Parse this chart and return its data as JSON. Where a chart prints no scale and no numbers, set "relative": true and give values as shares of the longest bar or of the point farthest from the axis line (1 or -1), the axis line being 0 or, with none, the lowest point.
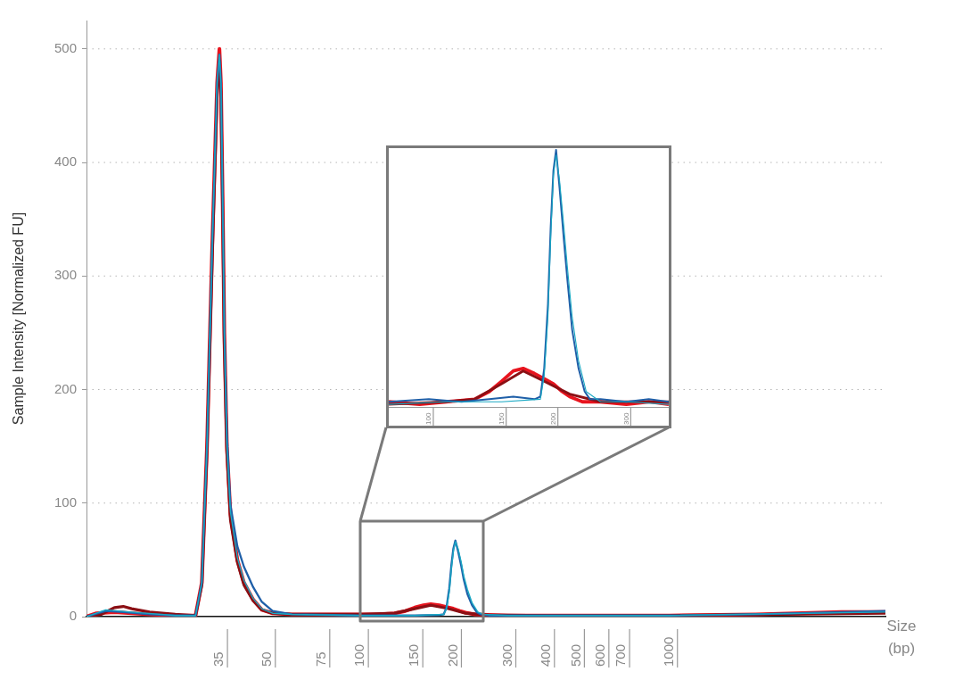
{
  "chart_data": [
    {
      "type": "line",
      "ylabel": "Sample Intensity [Normalized FU]",
      "xlabel": "Size (bp)",
      "log": "x",
      "xlim": [
        13,
        5000
      ],
      "xticks": [
        35,
        50,
        75,
        100,
        150,
        200,
        300,
        400,
        500,
        600,
        700,
        1000
      ],
      "ylim": [
        0,
        525
      ],
      "yticks": [
        0,
        100,
        200,
        300,
        400,
        500
      ],
      "grid": "y",
      "marker": "none",
      "series": [
        {
          "color": "#1aa9c4",
          "x": [
            13,
            15,
            18.2,
            25.2,
            29.3,
            30.7,
            31.9,
            33.2,
            34.4,
            35,
            35.4,
            35.8,
            36.3,
            37,
            38,
            40,
            42,
            45,
            48,
            52,
            60,
            100,
            150,
            186,
            190,
            194,
            197,
            200,
            203,
            207,
            212,
            216,
            222,
            230,
            240,
            250,
            300,
            1000,
            5000
          ],
          "values": [
            0,
            6,
            4,
            1,
            1,
            30,
            150,
            330,
            470,
            495,
            470,
            380,
            250,
            150,
            92,
            52,
            32,
            16,
            7,
            3,
            2,
            1,
            1,
            2,
            7,
            22,
            42,
            58,
            66,
            60,
            48,
            36,
            24,
            12,
            4,
            2,
            1,
            1,
            4
          ]
        },
        {
          "color": "#1f5fa8",
          "x": [
            13,
            15,
            17.1,
            20.8,
            25.2,
            29.3,
            30.7,
            31.9,
            33.2,
            34.4,
            35,
            35.4,
            35.8,
            36.3,
            37,
            38,
            40,
            42,
            45,
            48,
            52,
            60,
            100,
            150,
            180,
            186,
            190,
            194,
            197,
            200,
            203,
            207,
            212,
            216,
            222,
            230,
            238,
            245,
            260,
            300,
            400,
            1000,
            1900,
            3600,
            5000
          ],
          "values": [
            0,
            5,
            4,
            2,
            1,
            1,
            30,
            150,
            330,
            470,
            495,
            470,
            380,
            255,
            160,
            98,
            62,
            44,
            26,
            13,
            5,
            2,
            1,
            1,
            1.5,
            2,
            8,
            25,
            45,
            60,
            67,
            58,
            45,
            33,
            20,
            10,
            4,
            2,
            1,
            1,
            1,
            1,
            2,
            4,
            5
          ]
        },
        {
          "color": "#8b0f14",
          "x": [
            13,
            14.5,
            16,
            17.1,
            18.2,
            20.8,
            25.2,
            29.3,
            30.7,
            31.9,
            33.2,
            34.4,
            35,
            35.4,
            35.8,
            36.3,
            37,
            38,
            40,
            42,
            45,
            48,
            52,
            60,
            100,
            129,
            150,
            169,
            190,
            219,
            260,
            400,
            1000,
            5000
          ],
          "values": [
            0,
            2,
            8,
            9,
            7,
            4,
            2,
            1,
            28,
            145,
            320,
            460,
            490,
            460,
            370,
            240,
            145,
            85,
            48,
            28,
            14,
            6,
            3,
            2,
            2,
            3,
            7,
            10,
            7.5,
            3,
            1.5,
            1,
            1,
            3
          ]
        },
        {
          "color": "#e8141e",
          "x": [
            13,
            14,
            16,
            18.2,
            20.8,
            25.2,
            29.3,
            30.7,
            31.9,
            33.2,
            34.4,
            35,
            35.4,
            35.8,
            36.3,
            37,
            38,
            40,
            42,
            45,
            48,
            52,
            60,
            75,
            100,
            115,
            129,
            140,
            150,
            160,
            169,
            180,
            190,
            200,
            210,
            219,
            235,
            260,
            300,
            400,
            600,
            1000,
            1900,
            3600,
            5000
          ],
          "values": [
            0,
            3,
            4,
            3,
            2,
            1,
            1,
            30,
            150,
            330,
            470,
            500,
            470,
            380,
            250,
            150,
            90,
            50,
            30,
            15,
            6,
            3,
            2,
            2,
            2,
            2,
            3,
            5,
            8,
            10,
            11,
            10,
            8.5,
            7,
            5,
            3.5,
            2,
            1.5,
            1,
            1,
            1,
            1,
            2,
            4,
            4
          ]
        }
      ]
    },
    {
      "type": "line",
      "relative": true,
      "log": "x",
      "xlim": [
        80,
        380
      ],
      "xticks": [
        100,
        150,
        200,
        300
      ],
      "marker": "none",
      "series": [
        {
          "color": "#1aa9c4",
          "x": [
            80,
            110,
            150,
            186,
            190,
            194,
            197,
            200,
            203,
            207,
            212,
            216,
            222,
            230,
            240,
            260,
            300,
            380
          ],
          "values": [
            0.01,
            0.02,
            0.02,
            0.03,
            0.12,
            0.35,
            0.66,
            0.9,
            0.98,
            0.88,
            0.7,
            0.55,
            0.35,
            0.18,
            0.06,
            0.02,
            0.02,
            0.01
          ]
        },
        {
          "color": "#1f5fa8",
          "x": [
            80,
            100,
            120,
            140,
            160,
            180,
            186,
            190,
            194,
            197,
            200,
            203,
            207,
            212,
            216,
            222,
            230,
            238,
            245,
            260,
            300,
            340,
            380
          ],
          "values": [
            0.02,
            0.03,
            0.02,
            0.03,
            0.04,
            0.03,
            0.04,
            0.15,
            0.4,
            0.7,
            0.92,
            1,
            0.85,
            0.65,
            0.5,
            0.3,
            0.15,
            0.06,
            0.03,
            0.03,
            0.02,
            0.03,
            0.02
          ]
        },
        {
          "color": "#8b0f14",
          "x": [
            80,
            110,
            129,
            150,
            169,
            190,
            219,
            260,
            320,
            380
          ],
          "values": [
            0.01,
            0.02,
            0.03,
            0.09,
            0.14,
            0.1,
            0.05,
            0.02,
            0.02,
            0.02
          ]
        },
        {
          "color": "#e8141e",
          "x": [
            80,
            95,
            110,
            129,
            140,
            150,
            160,
            169,
            180,
            190,
            200,
            210,
            219,
            235,
            260,
            300,
            340,
            380
          ],
          "values": [
            0.02,
            0.01,
            0.02,
            0.03,
            0.06,
            0.1,
            0.14,
            0.15,
            0.13,
            0.11,
            0.09,
            0.06,
            0.04,
            0.02,
            0.02,
            0.01,
            0.02,
            0.01
          ]
        }
      ]
    }
  ]
}
